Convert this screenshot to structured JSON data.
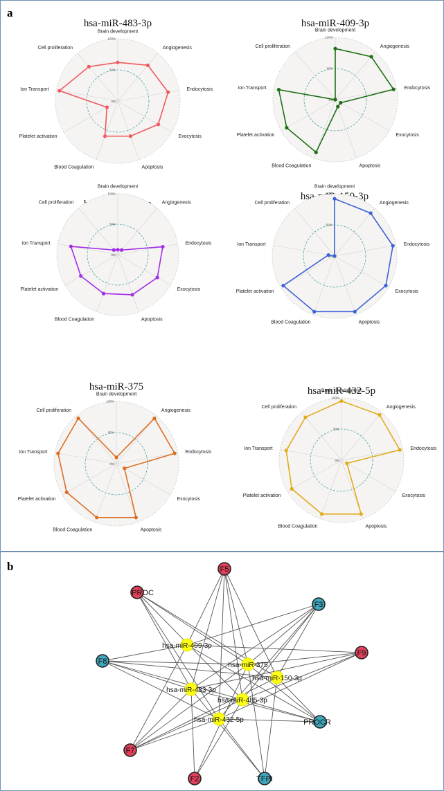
{
  "panels": {
    "a": "a",
    "b": "b"
  },
  "radar_axes": [
    "Brain development",
    "Angiogenesis",
    "Endocytosis",
    "Exocytosis",
    "Apoptosis",
    "Blood Coagulation",
    "Platelet activation",
    "Ion Transport",
    "Cell proliferation"
  ],
  "ticks": [
    "0%",
    "50%",
    "100%"
  ],
  "colors": {
    "miR-483-3p": "#ee5a5f",
    "miR-409-3p": "#1e6e16",
    "miR-485-3p": "#a22de8",
    "miR-150-3p": "#3a62d6",
    "miR-375": "#db6e22",
    "miR-432-5p": "#e0ac1a",
    "red_node": "#e0405a",
    "blue_node": "#3fa7bd",
    "mir_node": "#ffff14"
  },
  "chart_data": [
    {
      "type": "radar",
      "title": "hsa-miR-483-3p",
      "series": "miR-483-3p",
      "values": [
        62,
        75,
        82,
        75,
        60,
        60,
        20,
        95,
        72
      ]
    },
    {
      "type": "radar",
      "title": "hsa-miR-409-3p",
      "series": "miR-409-3p",
      "values": [
        82,
        90,
        95,
        10,
        12,
        90,
        90,
        92,
        0
      ]
    },
    {
      "type": "radar",
      "title": "hsa-miR-485-3p",
      "series": "miR-485-3p",
      "values": [
        8,
        10,
        75,
        75,
        70,
        68,
        70,
        78,
        10
      ]
    },
    {
      "type": "radar",
      "title": "hsa-miR-150-3p",
      "series": "miR-150-3p",
      "values": [
        92,
        90,
        95,
        95,
        95,
        95,
        95,
        10,
        0
      ]
    },
    {
      "type": "radar",
      "title": "hsa-miR-375",
      "series": "miR-375",
      "values": [
        10,
        95,
        95,
        15,
        92,
        92,
        92,
        95,
        95
      ]
    },
    {
      "type": "radar",
      "title": "hsa-miR-432-5p",
      "series": "miR-432-5p",
      "values": [
        95,
        95,
        95,
        10,
        92,
        92,
        92,
        90,
        90
      ]
    },
    {
      "type": "network",
      "nodes": [
        {
          "id": "F5",
          "label": "F5",
          "kind": "red"
        },
        {
          "id": "PROC",
          "label": "PROC",
          "kind": "red"
        },
        {
          "id": "F3",
          "label": "F3",
          "kind": "blue"
        },
        {
          "id": "F8",
          "label": "F8",
          "kind": "blue"
        },
        {
          "id": "F9",
          "label": "F9",
          "kind": "red"
        },
        {
          "id": "PROCR",
          "label": "PROCR",
          "kind": "blue"
        },
        {
          "id": "F7",
          "label": "F7",
          "kind": "red"
        },
        {
          "id": "F2",
          "label": "F2",
          "kind": "red"
        },
        {
          "id": "TFPI",
          "label": "TFPI",
          "kind": "blue"
        },
        {
          "id": "m409",
          "label": "hsa-miR-409-3p",
          "kind": "mir"
        },
        {
          "id": "m375",
          "label": "hsa-miR-375",
          "kind": "mir"
        },
        {
          "id": "m150",
          "label": "hsa-miR-150-3p",
          "kind": "mir"
        },
        {
          "id": "m483",
          "label": "hsa-miR-483-3p",
          "kind": "mir"
        },
        {
          "id": "m485",
          "label": "hsa-miR-485-3p",
          "kind": "mir"
        },
        {
          "id": "m432",
          "label": "hsa-miR-432-5p",
          "kind": "mir"
        }
      ],
      "edges": [
        [
          "F5",
          "m409"
        ],
        [
          "F5",
          "m375"
        ],
        [
          "F5",
          "m150"
        ],
        [
          "F5",
          "m483"
        ],
        [
          "F5",
          "m485"
        ],
        [
          "F5",
          "m432"
        ],
        [
          "PROC",
          "m375"
        ],
        [
          "PROC",
          "m150"
        ],
        [
          "PROC",
          "m483"
        ],
        [
          "PROC",
          "m485"
        ],
        [
          "PROC",
          "m432"
        ],
        [
          "F3",
          "m409"
        ],
        [
          "F3",
          "m375"
        ],
        [
          "F3",
          "m150"
        ],
        [
          "F3",
          "m483"
        ],
        [
          "F3",
          "m485"
        ],
        [
          "F3",
          "m432"
        ],
        [
          "F8",
          "m409"
        ],
        [
          "F8",
          "m375"
        ],
        [
          "F8",
          "m150"
        ],
        [
          "F8",
          "m483"
        ],
        [
          "F8",
          "m485"
        ],
        [
          "F8",
          "m432"
        ],
        [
          "F9",
          "m409"
        ],
        [
          "F9",
          "m375"
        ],
        [
          "F9",
          "m483"
        ],
        [
          "F9",
          "m485"
        ],
        [
          "F9",
          "m432"
        ],
        [
          "PROCR",
          "m409"
        ],
        [
          "PROCR",
          "m375"
        ],
        [
          "PROCR",
          "m150"
        ],
        [
          "PROCR",
          "m483"
        ],
        [
          "PROCR",
          "m485"
        ],
        [
          "PROCR",
          "m432"
        ],
        [
          "F7",
          "m409"
        ],
        [
          "F7",
          "m375"
        ],
        [
          "F7",
          "m150"
        ],
        [
          "F7",
          "m483"
        ],
        [
          "F7",
          "m485"
        ],
        [
          "F7",
          "m432"
        ],
        [
          "F2",
          "m375"
        ],
        [
          "F2",
          "m485"
        ],
        [
          "F2",
          "m483"
        ],
        [
          "TFPI",
          "m150"
        ],
        [
          "TFPI",
          "m483"
        ],
        [
          "TFPI",
          "m432"
        ],
        [
          "TFPI",
          "m375"
        ]
      ]
    }
  ]
}
